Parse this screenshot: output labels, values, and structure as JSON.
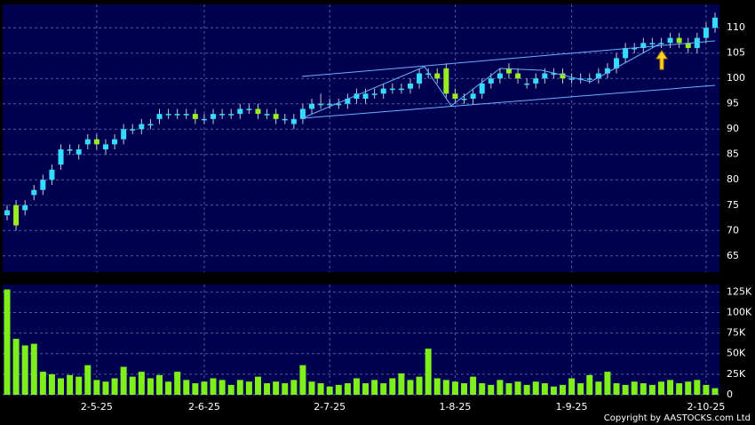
{
  "chart_data": [
    {
      "type": "candlestick",
      "categories": [
        null,
        null,
        null,
        null,
        null,
        null,
        null,
        null,
        null,
        null,
        "2-5-25",
        null,
        null,
        null,
        null,
        null,
        null,
        null,
        null,
        null,
        null,
        null,
        "2-6-25",
        null,
        null,
        null,
        null,
        null,
        null,
        null,
        null,
        null,
        null,
        null,
        null,
        null,
        "2-7-25",
        null,
        null,
        null,
        null,
        null,
        null,
        null,
        null,
        null,
        null,
        null,
        null,
        null,
        "1-8-25",
        null,
        null,
        null,
        null,
        null,
        null,
        null,
        null,
        null,
        null,
        null,
        null,
        "1-9-25",
        null,
        null,
        null,
        null,
        null,
        null,
        null,
        null,
        null,
        null,
        null,
        null,
        null,
        null,
        "2-10-25",
        null
      ],
      "open": [
        73,
        75,
        74,
        77,
        78,
        80,
        83,
        86,
        85,
        87,
        88,
        86,
        87,
        88,
        90,
        90,
        91,
        92,
        93,
        93,
        93,
        93,
        92,
        92,
        93,
        93,
        93,
        94,
        94,
        93,
        93,
        92,
        91,
        92,
        94,
        95,
        95,
        95,
        95,
        96,
        96,
        97,
        97,
        98,
        98,
        98,
        99,
        101,
        101,
        102,
        97,
        96,
        96,
        97,
        99,
        100,
        102,
        101,
        99,
        99,
        100,
        101,
        101,
        100,
        100,
        100,
        100,
        101,
        102,
        104,
        106,
        106,
        107,
        107,
        107,
        108,
        107,
        106,
        108,
        110
      ],
      "high": [
        75,
        76,
        76,
        79,
        81,
        83,
        87,
        87,
        87,
        89,
        89,
        88,
        89,
        91,
        91,
        92,
        92,
        94,
        94,
        94,
        94,
        94,
        93,
        94,
        94,
        94,
        95,
        95,
        95,
        94,
        94,
        93,
        93,
        95,
        96,
        97,
        96,
        96,
        97,
        98,
        98,
        98,
        99,
        99,
        99,
        100,
        102,
        102,
        102,
        103,
        98,
        97,
        98,
        100,
        101,
        102,
        103,
        102,
        100,
        101,
        102,
        102,
        102,
        101,
        101,
        101,
        102,
        103,
        105,
        107,
        107,
        108,
        108,
        108,
        109,
        109,
        108,
        109,
        111,
        113
      ],
      "low": [
        72,
        70,
        73,
        76,
        77,
        79,
        82,
        85,
        84,
        86,
        86,
        85,
        86,
        87,
        89,
        89,
        90,
        91,
        92,
        92,
        92,
        91,
        91,
        91,
        92,
        92,
        92,
        93,
        92,
        92,
        91,
        91,
        90,
        91,
        93,
        94,
        94,
        94,
        94,
        95,
        95,
        96,
        96,
        97,
        97,
        97,
        98,
        100,
        99,
        96,
        95,
        95,
        95,
        96,
        98,
        99,
        100,
        99,
        98,
        98,
        99,
        100,
        99,
        99,
        99,
        99,
        99,
        100,
        101,
        103,
        105,
        105,
        106,
        106,
        106,
        106,
        105,
        105,
        107,
        109
      ],
      "close": [
        74,
        71,
        75,
        78,
        80,
        82,
        86,
        86,
        86,
        88,
        87,
        87,
        88,
        90,
        90,
        91,
        91,
        93,
        93,
        93,
        93,
        92,
        92,
        93,
        93,
        93,
        94,
        94,
        93,
        93,
        92,
        92,
        92,
        94,
        95,
        95,
        95,
        95,
        96,
        97,
        97,
        97,
        98,
        98,
        98,
        99,
        101,
        101,
        100,
        97,
        96,
        96,
        97,
        99,
        100,
        101,
        101,
        100,
        99,
        100,
        101,
        101,
        100,
        100,
        100,
        100,
        101,
        102,
        104,
        106,
        106,
        107,
        107,
        107,
        108,
        107,
        106,
        108,
        110,
        112
      ],
      "up_color": "#33ddff",
      "down_color": "#99ee22",
      "ylim": [
        61.8,
        114.6
      ],
      "yticks": [
        65,
        70,
        75,
        80,
        85,
        90,
        95,
        100,
        105,
        110
      ],
      "grid": true
    },
    {
      "type": "bar",
      "values": [
        128000,
        68000,
        60000,
        62000,
        28000,
        25000,
        20000,
        24000,
        22000,
        36000,
        18000,
        16000,
        20000,
        34000,
        22000,
        28000,
        20000,
        24000,
        16000,
        28000,
        18000,
        14000,
        16000,
        20000,
        18000,
        12000,
        18000,
        16000,
        22000,
        14000,
        16000,
        14000,
        18000,
        36000,
        16000,
        14000,
        10000,
        12000,
        14000,
        20000,
        14000,
        18000,
        14000,
        20000,
        26000,
        18000,
        22000,
        56000,
        20000,
        18000,
        16000,
        14000,
        22000,
        14000,
        12000,
        18000,
        14000,
        16000,
        12000,
        16000,
        14000,
        10000,
        12000,
        20000,
        14000,
        24000,
        16000,
        28000,
        14000,
        12000,
        16000,
        14000,
        12000,
        16000,
        18000,
        14000,
        16000,
        18000,
        12000,
        8000
      ],
      "color": "#7fef1a",
      "ylim": [
        0,
        134000
      ],
      "yticks": [
        0,
        {
          "value": 25000,
          "label": "25K"
        },
        {
          "value": 50000,
          "label": "50K"
        },
        {
          "value": 75000,
          "label": "75K"
        },
        {
          "value": 100000,
          "label": "100K"
        },
        {
          "value": 125000,
          "label": "125K"
        }
      ],
      "grid": true
    }
  ],
  "copyright": "Copyright by AASTOCKS.com Ltd"
}
